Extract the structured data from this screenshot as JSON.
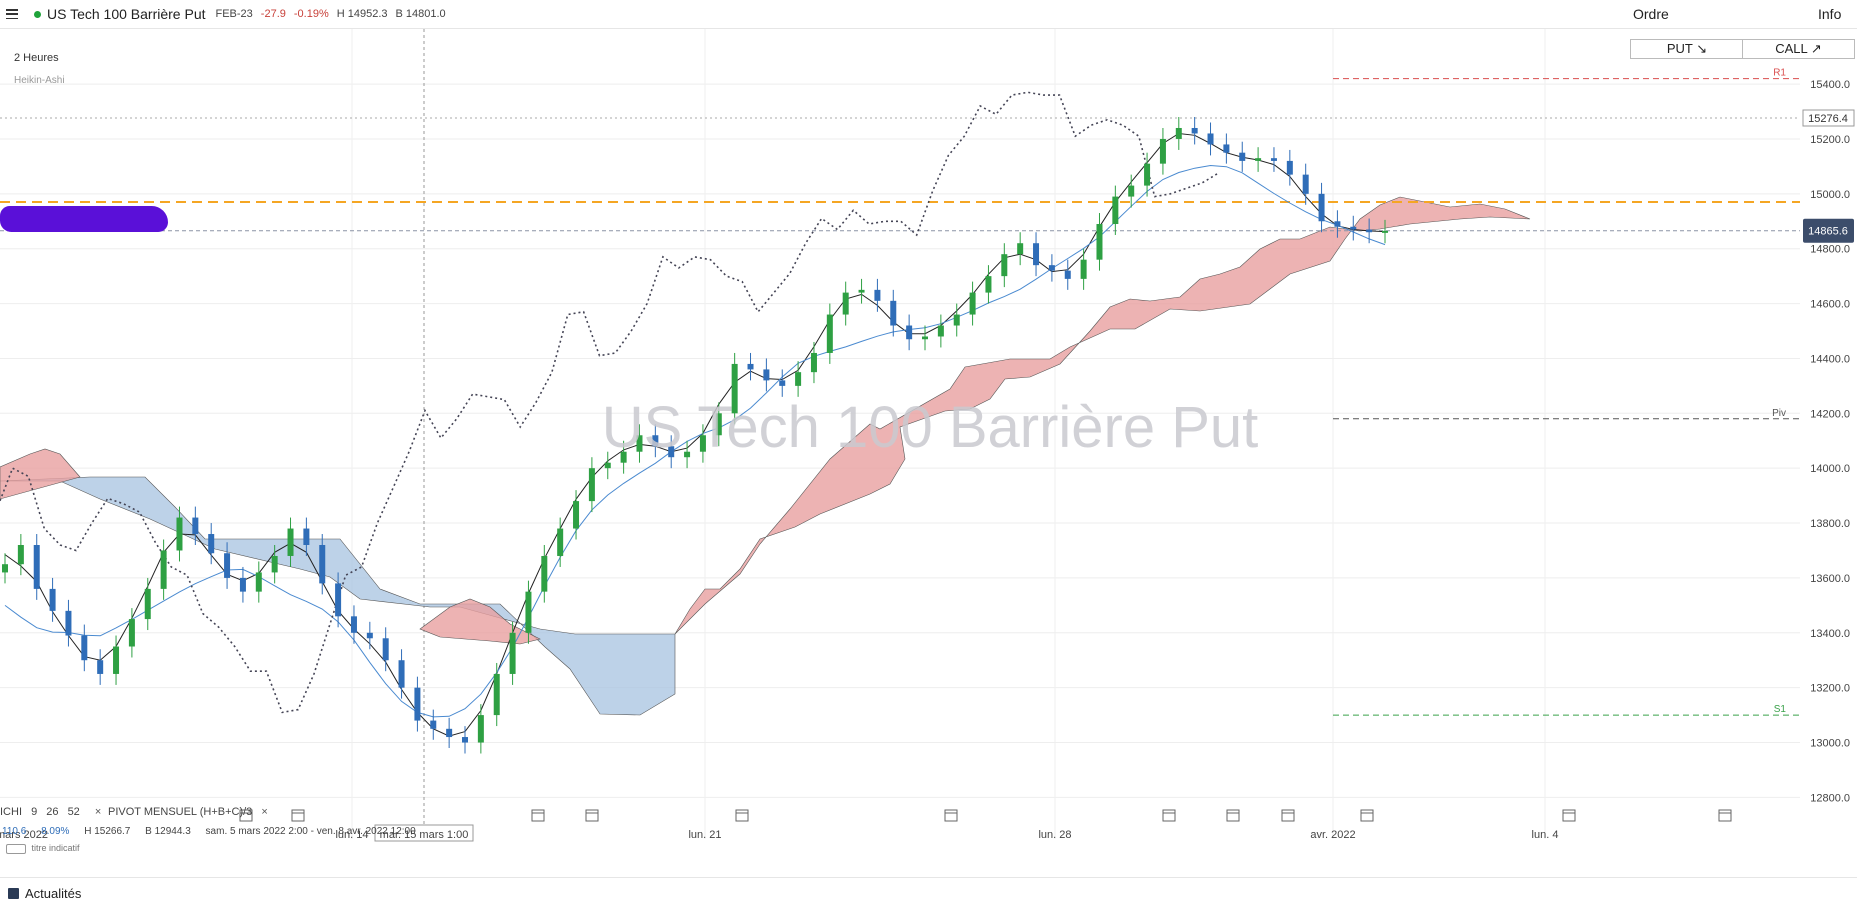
{
  "header": {
    "instrument": "US Tech 100 Barrière Put",
    "contract": "FEB-23",
    "change": "-27.9",
    "change_pct": "-0.19%",
    "high": "H 14952.3",
    "bid": "B 14801.0",
    "ordre_label": "Ordre",
    "info_label": "Info"
  },
  "buttons": {
    "put_label": "PUT ↘",
    "call_label": "CALL ↗"
  },
  "legend": {
    "timeframe": "2 Heures",
    "chart_style": "Heikin-Ashi"
  },
  "watermark": "US Tech 100 Barrière Put",
  "indicators": {
    "ichimoku": [
      "ICHI",
      "9",
      "26",
      "52"
    ],
    "pivot": [
      "PIVOT",
      "MENSUEL",
      "(H+B+C)/3"
    ],
    "close_symbol": "×",
    "stats": [
      "110.6",
      "8.09%",
      "H 15266.7",
      "B 12944.3",
      "sam. 5 mars 2022 2:00 - ven. 8 avr. 2022 12:00"
    ],
    "hint": "titre indicatif"
  },
  "footer": {
    "news_label": "Actualités"
  },
  "colors": {
    "up": "#2ea043",
    "down": "#2f6db8",
    "kumo_bull": "#e8a0a0",
    "kumo_bear": "#a7c3e0",
    "orange": "#f5a623",
    "price_tag": "#3c4d6b"
  },
  "chart_data": {
    "type": "candlestick",
    "title": "US Tech 100 Barrière Put",
    "ylim": [
      12700,
      15500
    ],
    "y_ticks": [
      12800,
      13000,
      13200,
      13400,
      13600,
      13800,
      14000,
      14200,
      14400,
      14600,
      14800,
      15000,
      15200,
      15400
    ],
    "y_tick_labels": [
      "12800.0",
      "13000.0",
      "13200.0",
      "13400.0",
      "13600.0",
      "13800.0",
      "14000.0",
      "14200.0",
      "14400.0",
      "14600.0",
      "14800.0",
      "15000.0",
      "15200.0",
      "15400.0"
    ],
    "x_labels": [
      "mars 2022",
      "lun. 14",
      "mar. 15 mars 1:00",
      "lun. 21",
      "lun. 28",
      "avr. 2022",
      "lun. 4"
    ],
    "current_price": 14865.6,
    "current_price_label": "14865.6",
    "high_line": 15276.4,
    "high_line_label": "15276.4",
    "orange_level": 14970,
    "pivot_levels": [
      {
        "label": "R1",
        "value": 15420
      },
      {
        "label": "Piv",
        "value": 14180
      },
      {
        "label": "S1",
        "value": 13100
      }
    ],
    "close_series": [
      13650,
      13720,
      13560,
      13480,
      13390,
      13300,
      13250,
      13350,
      13450,
      13560,
      13700,
      13820,
      13760,
      13690,
      13600,
      13550,
      13620,
      13680,
      13780,
      13720,
      13580,
      13460,
      13400,
      13380,
      13300,
      13200,
      13080,
      13050,
      13020,
      13000,
      13100,
      13250,
      13400,
      13550,
      13680,
      13780,
      13880,
      14000,
      14020,
      14060,
      14120,
      14080,
      14040,
      14060,
      14120,
      14200,
      14380,
      14360,
      14320,
      14300,
      14350,
      14420,
      14560,
      14640,
      14650,
      14610,
      14520,
      14470,
      14480,
      14520,
      14560,
      14640,
      14700,
      14780,
      14820,
      14740,
      14720,
      14690,
      14760,
      14890,
      14990,
      15030,
      15110,
      15200,
      15240,
      15220,
      15180,
      15150,
      15120,
      15130,
      15120,
      15070,
      15000,
      14900,
      14880,
      14870,
      14860,
      14865
    ]
  }
}
